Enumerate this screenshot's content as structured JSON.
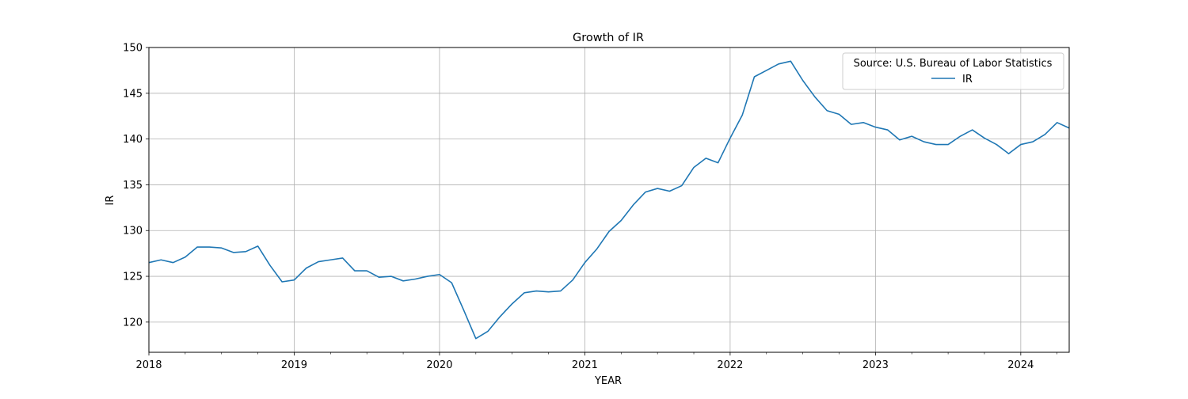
{
  "chart_data": {
    "type": "line",
    "title": "Growth of IR",
    "xlabel": "YEAR",
    "ylabel": "IR",
    "x_tick_labels": [
      "2018",
      "2019",
      "2020",
      "2021",
      "2022",
      "2023",
      "2024"
    ],
    "y_ticks": [
      120,
      125,
      130,
      135,
      140,
      145,
      150
    ],
    "xlim": [
      "2018-01",
      "2024-05"
    ],
    "ylim": [
      116.7,
      150
    ],
    "grid": true,
    "legend": {
      "title": "Source: U.S. Bureau of Labor Statistics",
      "placement": "top-right"
    },
    "colors": {
      "series": "#1f77b4",
      "grid": "#b0b0b0"
    },
    "series": [
      {
        "name": "IR",
        "points": [
          [
            "2018-01",
            126.5
          ],
          [
            "2018-02",
            126.8
          ],
          [
            "2018-03",
            126.5
          ],
          [
            "2018-04",
            127.1
          ],
          [
            "2018-05",
            128.2
          ],
          [
            "2018-06",
            128.2
          ],
          [
            "2018-07",
            128.1
          ],
          [
            "2018-08",
            127.6
          ],
          [
            "2018-09",
            127.7
          ],
          [
            "2018-10",
            128.3
          ],
          [
            "2018-11",
            126.2
          ],
          [
            "2018-12",
            124.4
          ],
          [
            "2019-01",
            124.6
          ],
          [
            "2019-02",
            125.9
          ],
          [
            "2019-03",
            126.6
          ],
          [
            "2019-04",
            126.8
          ],
          [
            "2019-05",
            127.0
          ],
          [
            "2019-06",
            125.6
          ],
          [
            "2019-07",
            125.6
          ],
          [
            "2019-08",
            124.9
          ],
          [
            "2019-09",
            125.0
          ],
          [
            "2019-10",
            124.5
          ],
          [
            "2019-11",
            124.7
          ],
          [
            "2019-12",
            125.0
          ],
          [
            "2020-01",
            125.2
          ],
          [
            "2020-02",
            124.3
          ],
          [
            "2020-03",
            121.3
          ],
          [
            "2020-04",
            118.2
          ],
          [
            "2020-05",
            119.0
          ],
          [
            "2020-06",
            120.6
          ],
          [
            "2020-07",
            122.0
          ],
          [
            "2020-08",
            123.2
          ],
          [
            "2020-09",
            123.4
          ],
          [
            "2020-10",
            123.3
          ],
          [
            "2020-11",
            123.4
          ],
          [
            "2020-12",
            124.6
          ],
          [
            "2021-01",
            126.5
          ],
          [
            "2021-02",
            128.0
          ],
          [
            "2021-03",
            129.9
          ],
          [
            "2021-04",
            131.1
          ],
          [
            "2021-05",
            132.8
          ],
          [
            "2021-06",
            134.2
          ],
          [
            "2021-07",
            134.6
          ],
          [
            "2021-08",
            134.3
          ],
          [
            "2021-09",
            134.9
          ],
          [
            "2021-10",
            136.9
          ],
          [
            "2021-11",
            137.9
          ],
          [
            "2021-12",
            137.4
          ],
          [
            "2022-01",
            140.1
          ],
          [
            "2022-02",
            142.6
          ],
          [
            "2022-03",
            146.8
          ],
          [
            "2022-04",
            147.5
          ],
          [
            "2022-05",
            148.2
          ],
          [
            "2022-06",
            148.5
          ],
          [
            "2022-07",
            146.4
          ],
          [
            "2022-08",
            144.6
          ],
          [
            "2022-09",
            143.1
          ],
          [
            "2022-10",
            142.7
          ],
          [
            "2022-11",
            141.6
          ],
          [
            "2022-12",
            141.8
          ],
          [
            "2023-01",
            141.3
          ],
          [
            "2023-02",
            141.0
          ],
          [
            "2023-03",
            139.9
          ],
          [
            "2023-04",
            140.3
          ],
          [
            "2023-05",
            139.7
          ],
          [
            "2023-06",
            139.4
          ],
          [
            "2023-07",
            139.4
          ],
          [
            "2023-08",
            140.3
          ],
          [
            "2023-09",
            141.0
          ],
          [
            "2023-10",
            140.1
          ],
          [
            "2023-11",
            139.4
          ],
          [
            "2023-12",
            138.4
          ],
          [
            "2024-01",
            139.4
          ],
          [
            "2024-02",
            139.7
          ],
          [
            "2024-03",
            140.5
          ],
          [
            "2024-04",
            141.8
          ],
          [
            "2024-05",
            141.2
          ]
        ]
      }
    ]
  }
}
